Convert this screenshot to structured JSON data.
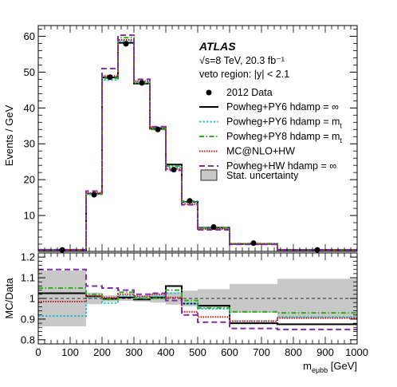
{
  "chart_data": [
    {
      "type": "histogram",
      "panel": "main",
      "ylabel": "Events / GeV",
      "ylim": [
        0,
        63
      ],
      "yticks": [
        "10",
        "20",
        "30",
        "40",
        "50",
        "60"
      ],
      "xlim": [
        0,
        1000
      ],
      "bin_edges": [
        0,
        150,
        200,
        250,
        300,
        350,
        400,
        450,
        500,
        600,
        750,
        1000
      ],
      "texts": {
        "experiment": "ATLAS",
        "energy_lumi": "√s=8 TeV, 20.3 fb⁻¹",
        "region": "veto region: |y| < 2.1"
      },
      "data": {
        "name": "2012 Data",
        "x": [
          75,
          175,
          225,
          275,
          325,
          375,
          425,
          475,
          550,
          675,
          875
        ],
        "y": [
          0.4,
          15.8,
          48.6,
          57.9,
          47.0,
          34.0,
          22.8,
          14.1,
          6.8,
          2.3,
          0.4
        ]
      },
      "series": [
        {
          "name": "Powheg+PY6 hdamp = ∞",
          "color": "#000000",
          "style": "solid",
          "values": [
            0.41,
            16.1,
            48.5,
            58.2,
            46.8,
            34.2,
            24.2,
            13.8,
            6.6,
            2.05,
            0.42
          ]
        },
        {
          "name": "Powheg+PY6 hdamp = m",
          "sub": "t",
          "color": "#2ebfc9",
          "style": "dotted",
          "values": [
            0.37,
            15.9,
            47.8,
            58.6,
            47.3,
            34.5,
            23.4,
            13.7,
            6.4,
            2.05,
            0.4
          ]
        },
        {
          "name": "Powheg+PY8 hdamp = m",
          "sub": "t",
          "color": "#33aa22",
          "style": "dashdot",
          "values": [
            0.42,
            16.0,
            48.3,
            59.6,
            46.9,
            34.0,
            23.8,
            14.0,
            6.5,
            2.15,
            0.42
          ]
        },
        {
          "name": "MC@NLO+HW",
          "color": "#cc1111",
          "style": "fine",
          "values": [
            0.39,
            16.3,
            49.0,
            59.0,
            47.5,
            34.6,
            23.0,
            13.2,
            6.2,
            2.05,
            0.4
          ]
        },
        {
          "name": "Powheg+HW hdamp = ∞",
          "color": "#7d2ea0",
          "style": "dashed",
          "values": [
            0.46,
            16.8,
            51.0,
            60.3,
            48.0,
            34.8,
            22.6,
            13.0,
            6.0,
            1.95,
            0.37
          ]
        }
      ],
      "uncertainty_legend": "Stat. uncertainty"
    },
    {
      "type": "histogram",
      "panel": "ratio",
      "ylabel": "MC/Data",
      "xlabel": "m",
      "xlabel_sub": "eμbb",
      "xlabel_unit": " [GeV]",
      "ylim": [
        0.78,
        1.22
      ],
      "yticks": [
        "0.8",
        "0.9",
        "1",
        "1.1",
        "1.2"
      ],
      "xlim": [
        0,
        1000
      ],
      "xticks": [
        "0",
        "100",
        "200",
        "300",
        "400",
        "500",
        "600",
        "700",
        "800",
        "900",
        "1000"
      ],
      "bin_edges": [
        0,
        150,
        200,
        250,
        300,
        350,
        400,
        450,
        500,
        600,
        750,
        1000
      ],
      "stat_band": [
        [
          0.865,
          1.135
        ],
        [
          0.972,
          1.028
        ],
        [
          0.985,
          1.015
        ],
        [
          0.988,
          1.012
        ],
        [
          0.985,
          1.015
        ],
        [
          0.98,
          1.02
        ],
        [
          0.97,
          1.03
        ],
        [
          0.962,
          1.038
        ],
        [
          0.955,
          1.045
        ],
        [
          0.93,
          1.07
        ],
        [
          0.905,
          1.095
        ]
      ],
      "series": [
        {
          "name": "Powheg+PY6 hdamp = ∞",
          "values": [
            1.025,
            1.01,
            0.998,
            1.005,
            0.995,
            1.005,
            1.06,
            0.975,
            0.965,
            0.88,
            0.875
          ]
        },
        {
          "name": "Powheg+PY6 hdamp = mt",
          "values": [
            0.915,
            1.005,
            0.978,
            1.012,
            1.005,
            1.01,
            1.025,
            0.975,
            0.95,
            0.89,
            0.91
          ]
        },
        {
          "name": "Powheg+PY8 hdamp = mt",
          "values": [
            1.05,
            1.02,
            0.995,
            1.03,
            1.0,
            1.0,
            1.04,
            0.99,
            0.955,
            0.935,
            0.93
          ]
        },
        {
          "name": "MC@NLO+HW",
          "values": [
            0.985,
            1.01,
            1.005,
            1.02,
            1.01,
            1.02,
            1.005,
            0.935,
            0.91,
            0.89,
            0.905
          ]
        },
        {
          "name": "Powheg+HW hdamp = ∞",
          "values": [
            1.14,
            1.06,
            1.05,
            1.04,
            1.02,
            1.025,
            0.99,
            0.92,
            0.885,
            0.855,
            0.85
          ]
        }
      ]
    }
  ]
}
